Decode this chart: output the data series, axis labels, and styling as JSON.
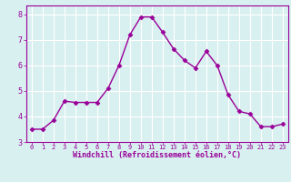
{
  "x": [
    0,
    1,
    2,
    3,
    4,
    5,
    6,
    7,
    8,
    9,
    10,
    11,
    12,
    13,
    14,
    15,
    16,
    17,
    18,
    19,
    20,
    21,
    22,
    23
  ],
  "y": [
    3.5,
    3.5,
    3.85,
    4.6,
    4.55,
    4.55,
    4.55,
    5.1,
    6.0,
    7.2,
    7.9,
    7.9,
    7.3,
    6.65,
    6.2,
    5.9,
    6.55,
    6.0,
    4.85,
    4.2,
    4.1,
    3.6,
    3.6,
    3.7
  ],
  "xlim": [
    -0.5,
    23.5
  ],
  "ylim": [
    3.0,
    8.35
  ],
  "yticks": [
    3,
    4,
    5,
    6,
    7,
    8
  ],
  "xticks": [
    0,
    1,
    2,
    3,
    4,
    5,
    6,
    7,
    8,
    9,
    10,
    11,
    12,
    13,
    14,
    15,
    16,
    17,
    18,
    19,
    20,
    21,
    22,
    23
  ],
  "xlabel": "Windchill (Refroidissement éolien,°C)",
  "line_color": "#990099",
  "marker": "D",
  "marker_size": 2.5,
  "bg_color": "#d9f0f0",
  "grid_color": "#ffffff",
  "tick_color": "#990099",
  "label_color": "#990099",
  "line_width": 1.0,
  "spine_color": "#990099"
}
